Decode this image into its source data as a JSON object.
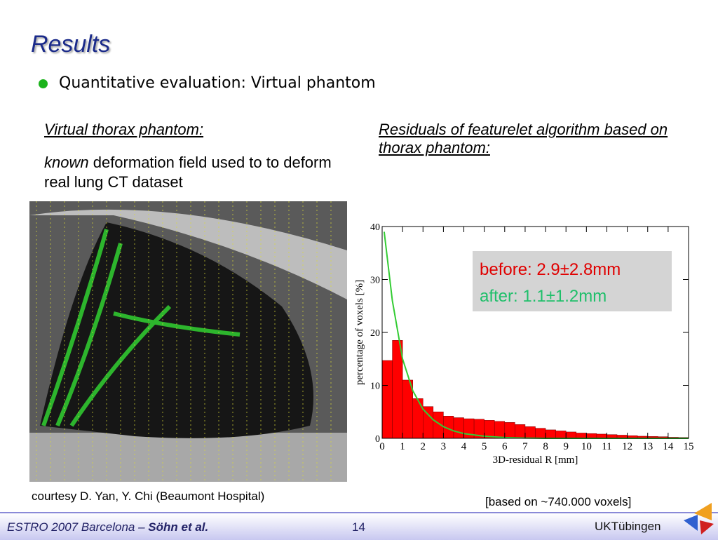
{
  "header": {
    "title": "Results"
  },
  "bullets": [
    "Quantitative evaluation: Virtual phantom"
  ],
  "left": {
    "heading": "Virtual thorax phantom:",
    "emph": "known",
    "text": "deformation field used to to deform real lung CT dataset",
    "caption": "courtesy D. Yan, Y. Chi (Beaumont Hospital)"
  },
  "right": {
    "heading": "Residuals of featurelet algorithm based on thorax phantom:",
    "note": "[based on ~740.000 voxels]"
  },
  "chart_data": {
    "type": "histogram",
    "xlabel": "3D-residual R [mm]",
    "ylabel": "percentage of voxels [%]",
    "bins": [
      0,
      0.5,
      1,
      1.5,
      2,
      2.5,
      3,
      3.5,
      4,
      4.5,
      5,
      5.5,
      6,
      6.5,
      7,
      7.5,
      8,
      8.5,
      9,
      9.5,
      10,
      10.5,
      11,
      11.5,
      12,
      12.5,
      13,
      13.5,
      14,
      14.5,
      15
    ],
    "values": [
      14.7,
      18.5,
      11,
      7.5,
      6,
      5,
      4.2,
      3.9,
      3.7,
      3.6,
      3.4,
      3.2,
      3.0,
      2.6,
      2.2,
      1.9,
      1.6,
      1.4,
      1.2,
      1.0,
      0.9,
      0.8,
      0.7,
      0.6,
      0.5,
      0.4,
      0.35,
      0.3,
      0.2,
      0.15
    ],
    "color": "#ff0000",
    "line": {
      "x": [
        0.1,
        0.5,
        1,
        1.5,
        2,
        2.5,
        3,
        3.5,
        4,
        5,
        6,
        7,
        8,
        15
      ],
      "values": [
        39,
        26,
        15,
        9,
        5.5,
        3.5,
        2.2,
        1.4,
        0.9,
        0.4,
        0.15,
        0.05,
        0,
        0
      ],
      "color": "#33cc33"
    },
    "xlim": [
      0,
      15
    ],
    "xticks": [
      0,
      1,
      2,
      3,
      4,
      5,
      6,
      7,
      8,
      9,
      10,
      11,
      12,
      13,
      14,
      15
    ],
    "ylim": [
      0,
      40
    ],
    "yticks": [
      0,
      10,
      20,
      30,
      40
    ],
    "annotations": [
      {
        "text": "before: 2.9±2.8mm",
        "color": "#e00000"
      },
      {
        "text": "after: 1.1±1.2mm",
        "color": "#1fbf6a"
      }
    ]
  },
  "footer": {
    "conference": "ESTRO 2007 Barcelona – ",
    "authors": "Söhn et al.",
    "page": 14,
    "org": "UKTübingen"
  }
}
